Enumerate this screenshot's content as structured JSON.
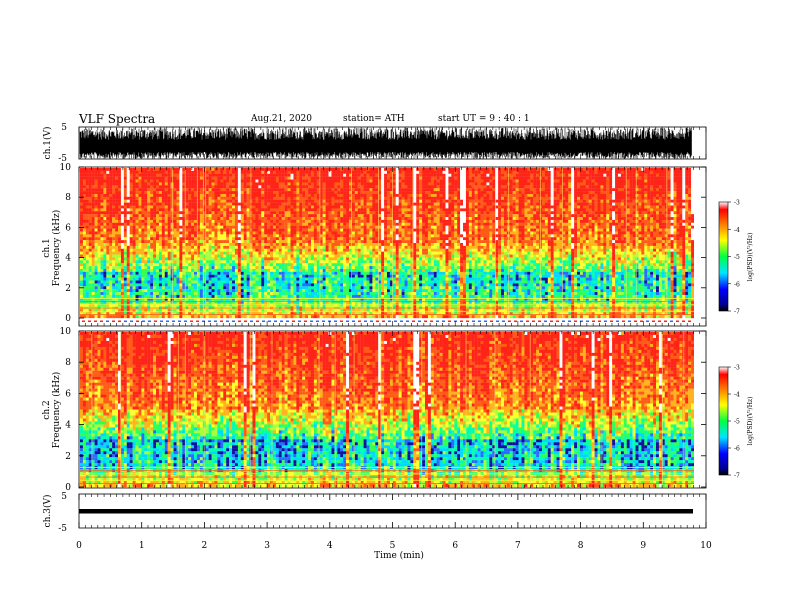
{
  "header": {
    "title": "VLF Spectra",
    "date": "Aug.21, 2020",
    "station": "station= ATH",
    "start": "start  UT =  9 : 40 : 1"
  },
  "chart_data": [
    {
      "type": "line",
      "title": "",
      "ylabel": "ch.1(V)",
      "ylim": [
        -5,
        5
      ],
      "yticks": [
        "5",
        "-5"
      ],
      "xlim": [
        0,
        10
      ],
      "description_values": "dense waveform filling most of the range, mostly between about -5 and 3 V"
    },
    {
      "type": "heatmap",
      "ylabel_line1": "ch.1",
      "ylabel_line2": "Frequency (kHz)",
      "ylim": [
        0,
        10
      ],
      "yticks": [
        "0",
        "2",
        "4",
        "6",
        "8",
        "10"
      ],
      "xlim": [
        0,
        10
      ],
      "colorbar": {
        "label": "log(PSD)(V²/Hz)",
        "range": [
          -7,
          -3
        ],
        "ticks": [
          "-3",
          "-4",
          "-5",
          "-6",
          "-7"
        ]
      }
    },
    {
      "type": "heatmap",
      "ylabel_line1": "ch.2",
      "ylabel_line2": "Frequency (kHz)",
      "ylim": [
        0,
        10
      ],
      "yticks": [
        "0",
        "2",
        "4",
        "6",
        "8",
        "10"
      ],
      "xlim": [
        0,
        10
      ],
      "colorbar": {
        "label": "log(PSD)(V²/Hz)",
        "range": [
          -7,
          -3
        ],
        "ticks": [
          "-3",
          "-4",
          "-5",
          "-6",
          "-7"
        ]
      }
    },
    {
      "type": "line",
      "ylabel": "ch.3(V)",
      "ylim": [
        -5,
        5
      ],
      "yticks": [
        "5",
        "-5"
      ],
      "xlim": [
        0,
        10
      ],
      "xlabel": "Time (min)",
      "xticks": [
        "0",
        "1",
        "2",
        "3",
        "4",
        "5",
        "6",
        "7",
        "8",
        "9",
        "10"
      ],
      "description_values": "near-constant trace at about -1.5 V"
    }
  ],
  "colors": {
    "spectro_high": "#ff2a1a",
    "spectro_mid": "#ffff33",
    "spectro_low": "#00ffcc",
    "spectro_min": "#0000aa",
    "waveform": "#000000"
  }
}
